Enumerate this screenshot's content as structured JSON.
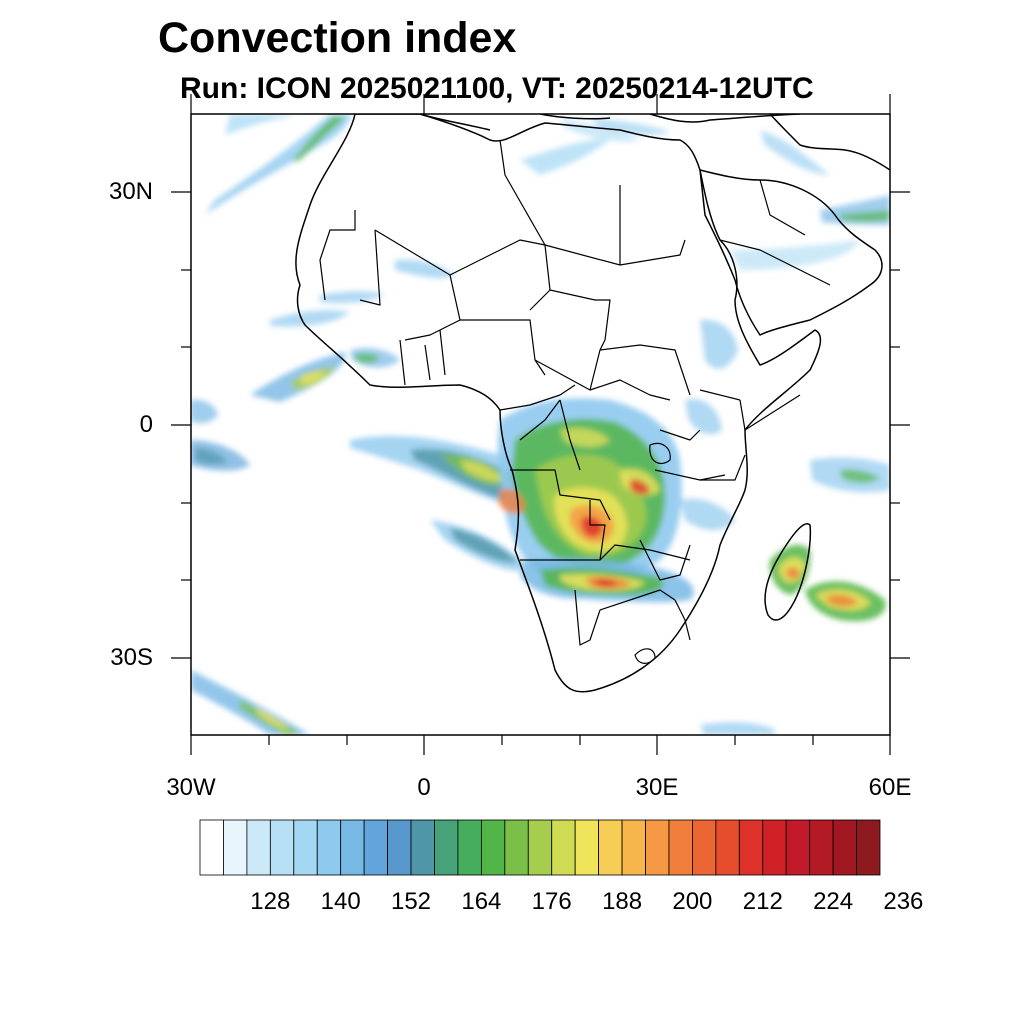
{
  "title": "Convection index",
  "subtitle": "Run: ICON 2025021100,  VT: 20250214-12UTC",
  "map": {
    "lon_range": [
      -30,
      60
    ],
    "lat_range": [
      -40,
      40
    ],
    "lat_ticks": [
      {
        "value": 30,
        "label": "30N"
      },
      {
        "value": 0,
        "label": "0"
      },
      {
        "value": -30,
        "label": "30S"
      }
    ],
    "lon_ticks": [
      {
        "value": -30,
        "label": "30W"
      },
      {
        "value": 0,
        "label": "0"
      },
      {
        "value": 30,
        "label": "30E"
      },
      {
        "value": 60,
        "label": "60E"
      }
    ]
  },
  "colorbar": {
    "colors": [
      "#ffffff",
      "#e8f5fc",
      "#cce9f8",
      "#b8e0f5",
      "#a3d7f3",
      "#8ec9ee",
      "#77b8e5",
      "#62a5dc",
      "#5898cc",
      "#4f97a8",
      "#47a27a",
      "#46ad5c",
      "#52b547",
      "#7bbf48",
      "#a7cd4d",
      "#cfdb52",
      "#efe45a",
      "#f6ce55",
      "#f7b54c",
      "#f59944",
      "#f07f3b",
      "#eb6633",
      "#e54d2d",
      "#dd3229",
      "#d02127",
      "#c21a28",
      "#b31a25",
      "#a21822",
      "#8c1a1e"
    ],
    "labels": [
      {
        "index": 3,
        "text": "128"
      },
      {
        "index": 6,
        "text": "140"
      },
      {
        "index": 9,
        "text": "152"
      },
      {
        "index": 12,
        "text": "164"
      },
      {
        "index": 15,
        "text": "176"
      },
      {
        "index": 18,
        "text": "188"
      },
      {
        "index": 21,
        "text": "200"
      },
      {
        "index": 24,
        "text": "212"
      },
      {
        "index": 27,
        "text": "224"
      },
      {
        "index": 30,
        "text": "236"
      }
    ]
  }
}
